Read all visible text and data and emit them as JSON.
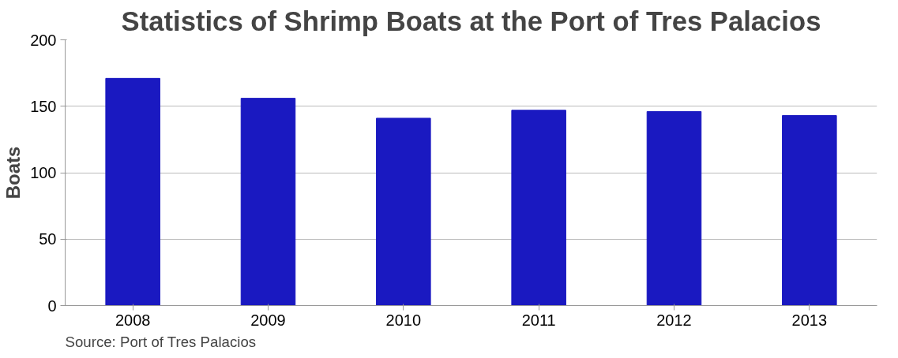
{
  "chart_data": {
    "type": "bar",
    "title": "Statistics of Shrimp Boats at the Port of Tres Palacios",
    "ylabel": "Boats",
    "categories": [
      "2008",
      "2009",
      "2010",
      "2011",
      "2012",
      "2013"
    ],
    "values": [
      171,
      156,
      141,
      147,
      146,
      143
    ],
    "color": "#1a19c1",
    "ylim": [
      0,
      200
    ],
    "yticks": [
      0,
      50,
      100,
      150,
      200
    ],
    "grid": "y",
    "annotations": [
      "Source: Port of Tres Palacios"
    ]
  }
}
